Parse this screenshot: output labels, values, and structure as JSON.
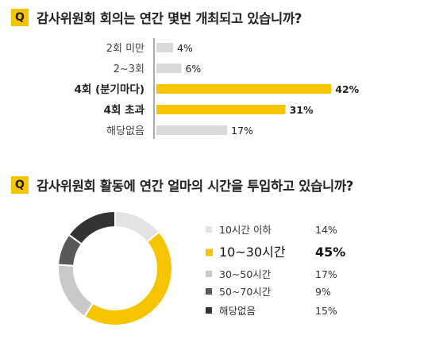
{
  "q1": {
    "badge": "Q",
    "question": "감사위원회 회의는 연간 몇번 개최되고 있습니까?"
  },
  "q2": {
    "badge": "Q",
    "question": "감사위원회 활동에 연간 얼마의 시간을 투입하고 있습니까?"
  },
  "chart_data": [
    {
      "type": "bar",
      "orientation": "horizontal",
      "categories": [
        "2회 미만",
        "2~3회",
        "4회 (분기마다)",
        "4회 초과",
        "해당없음"
      ],
      "values": [
        4,
        6,
        42,
        31,
        17
      ],
      "value_labels": [
        "4%",
        "6%",
        "42%",
        "31%",
        "17%"
      ],
      "highlight": [
        false,
        false,
        true,
        true,
        false
      ],
      "unit": "%",
      "xlim": [
        0,
        45
      ],
      "grid": false,
      "colors": {
        "highlight": "#f7c400",
        "normal": "#d9d9d9"
      }
    },
    {
      "type": "pie",
      "donut": true,
      "labels": [
        "10시간 이하",
        "10~30시간",
        "30~50시간",
        "50~70시간",
        "해당없음"
      ],
      "values": [
        14,
        45,
        17,
        9,
        15
      ],
      "value_labels": [
        "14%",
        "45%",
        "17%",
        "9%",
        "15%"
      ],
      "highlight": [
        false,
        true,
        false,
        false,
        false
      ],
      "colors": [
        "#e3e3e3",
        "#f7c400",
        "#c9c9c9",
        "#595959",
        "#333333"
      ],
      "legend": "right"
    }
  ]
}
